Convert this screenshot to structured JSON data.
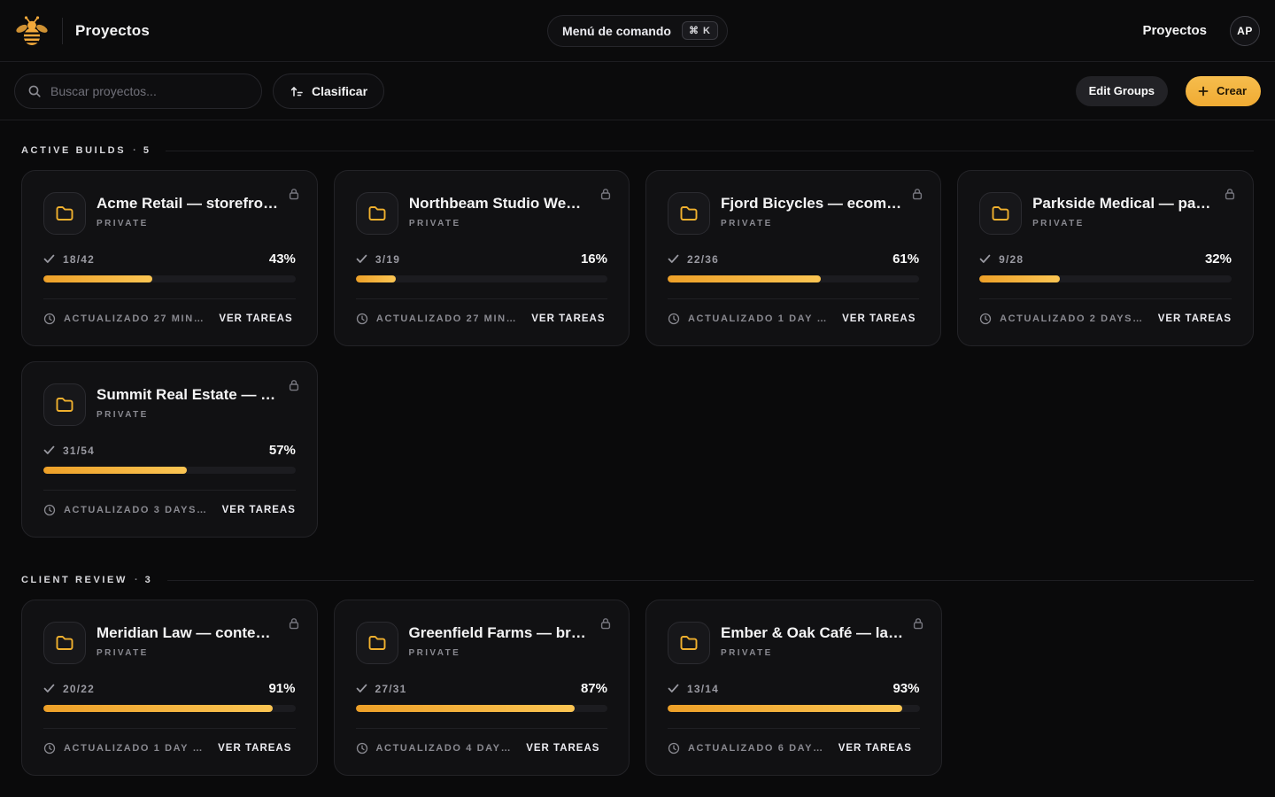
{
  "header": {
    "app_title": "Proyectos",
    "command_menu": {
      "label": "Menú de comando",
      "shortcut": "⌘ K"
    },
    "nav_link": "Proyectos",
    "avatar_initials": "AP"
  },
  "toolbar": {
    "search_placeholder": "Buscar proyectos...",
    "sort_label": "Clasificar",
    "edit_groups_label": "Edit Groups",
    "create_label": "Crear"
  },
  "card_labels": {
    "private": "PRIVATE",
    "view_tasks": "VER TAREAS"
  },
  "icons": {
    "logo": "bee-icon",
    "search": "search-icon",
    "sort": "sort-ascending-icon",
    "plus": "plus-icon",
    "folder": "folder-icon",
    "lock": "lock-icon",
    "check": "check-icon",
    "clock": "clock-icon"
  },
  "colors": {
    "accent": "#f2b13c",
    "accent_gradient_start": "#eda028",
    "accent_gradient_end": "#fbc553",
    "page_bg": "#0a0a0b",
    "card_bg": "#111113",
    "muted_text": "#8a8a91"
  },
  "sections": [
    {
      "title": "ACTIVE BUILDS",
      "separator": "·",
      "count": "5",
      "cards": [
        {
          "title": "Acme Retail — storefro…",
          "done": "18/42",
          "percent": "43%",
          "progress": 43,
          "updated": "ACTUALIZADO 27 MIN…"
        },
        {
          "title": "Northbeam Studio We…",
          "done": "3/19",
          "percent": "16%",
          "progress": 16,
          "updated": "ACTUALIZADO 27 MIN…"
        },
        {
          "title": "Fjord Bicycles — ecom…",
          "done": "22/36",
          "percent": "61%",
          "progress": 61,
          "updated": "ACTUALIZADO 1 DAY …"
        },
        {
          "title": "Parkside Medical — pa…",
          "done": "9/28",
          "percent": "32%",
          "progress": 32,
          "updated": "ACTUALIZADO 2 DAYS…"
        },
        {
          "title": "Summit Real Estate — …",
          "done": "31/54",
          "percent": "57%",
          "progress": 57,
          "updated": "ACTUALIZADO 3 DAYS…"
        }
      ]
    },
    {
      "title": "CLIENT REVIEW",
      "separator": "·",
      "count": "3",
      "cards": [
        {
          "title": "Meridian Law — conte…",
          "done": "20/22",
          "percent": "91%",
          "progress": 91,
          "updated": "ACTUALIZADO 1 DAY …"
        },
        {
          "title": "Greenfield Farms — br…",
          "done": "27/31",
          "percent": "87%",
          "progress": 87,
          "updated": "ACTUALIZADO 4 DAY…"
        },
        {
          "title": "Ember & Oak Café — la…",
          "done": "13/14",
          "percent": "93%",
          "progress": 93,
          "updated": "ACTUALIZADO 6 DAY…"
        }
      ]
    }
  ]
}
